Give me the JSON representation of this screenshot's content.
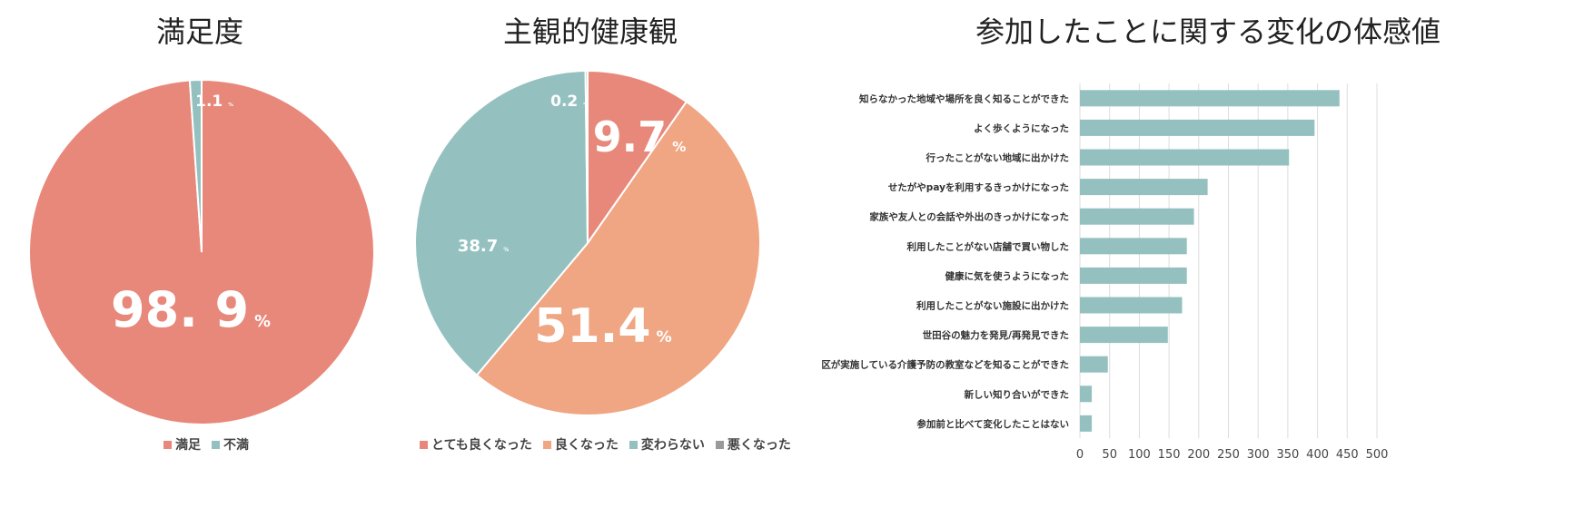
{
  "titles": {
    "satisfaction": "満足度",
    "health": "主観的健康観",
    "change": "参加したことに関する変化の体感値"
  },
  "chart_data": [
    {
      "type": "pie",
      "title": "満足度",
      "slices": [
        {
          "label": "満足",
          "value": 98.9,
          "display": "98. 9",
          "color": "#e8887a"
        },
        {
          "label": "不満",
          "value": 1.1,
          "display": "1.1",
          "color": "#94c1bf"
        }
      ],
      "legend": "bottom"
    },
    {
      "type": "pie",
      "title": "主観的健康観",
      "slices": [
        {
          "label": "とても良くなった",
          "value": 9.7,
          "display": "9.7",
          "color": "#e8887a"
        },
        {
          "label": "良くなった",
          "value": 51.4,
          "display": "51.4",
          "color": "#f0a683"
        },
        {
          "label": "変わらない",
          "value": 38.7,
          "display": "38.7",
          "color": "#94c1bf"
        },
        {
          "label": "悪くなった",
          "value": 0.2,
          "display": "0.2",
          "color": "#9a9a9a"
        }
      ],
      "legend": "bottom"
    },
    {
      "type": "bar",
      "orientation": "horizontal",
      "title": "参加したことに関する変化の体感値",
      "categories": [
        "知らなかった地域や場所を良く知ることができた",
        "よく歩くようになった",
        "行ったことがない地域に出かけた",
        "せたがやpayを利用するきっかけになった",
        "家族や友人との会話や外出のきっかけになった",
        "利用したことがない店舗で買い物した",
        "健康に気を使うようになった",
        "利用したことがない施設に出かけた",
        "世田谷の魅力を発見/再発見できた",
        "区が実施している介護予防の教室などを知ることができた",
        "新しい知り合いができた",
        "参加前と比べて変化したことはない"
      ],
      "values": [
        437,
        395,
        352,
        215,
        192,
        180,
        180,
        172,
        148,
        47,
        20,
        20
      ],
      "color": "#94c1bf",
      "xlim": [
        0,
        500
      ],
      "xticks": [
        "0",
        "50",
        "100",
        "150",
        "200",
        "250",
        "300",
        "350",
        "400",
        "450",
        "500"
      ],
      "grid": true
    }
  ],
  "pct_sign": "%"
}
